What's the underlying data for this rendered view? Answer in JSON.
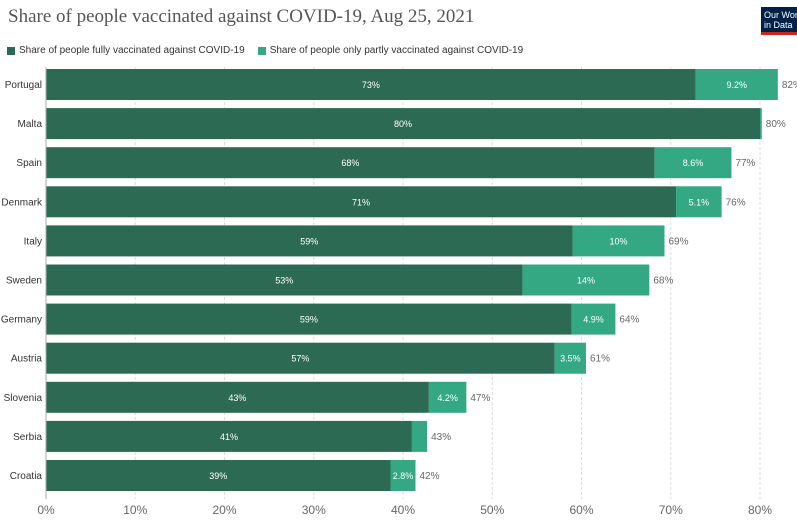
{
  "title": "Share of people vaccinated against COVID-19, Aug 25, 2021",
  "logo": {
    "line1": "Our World",
    "line2": "in Data"
  },
  "colors": {
    "fully": "#2c6a54",
    "partly": "#34a883",
    "grid": "#dddddd",
    "text": "#555555",
    "logo_bg": "#002147",
    "logo_accent": "#ce261e"
  },
  "chart_data": {
    "type": "bar",
    "orientation": "horizontal",
    "stacked": true,
    "title": "Share of people vaccinated against COVID-19, Aug 25, 2021",
    "categories": [
      "Portugal",
      "Malta",
      "Spain",
      "Denmark",
      "Italy",
      "Sweden",
      "Germany",
      "Austria",
      "Slovenia",
      "Serbia",
      "Croatia"
    ],
    "series": [
      {
        "name": "Share of people fully vaccinated against COVID-19",
        "values": [
          72.8,
          80.0,
          68.2,
          70.6,
          59.0,
          53.4,
          58.9,
          57.0,
          42.9,
          41.0,
          38.6
        ],
        "labels": [
          "73%",
          "80%",
          "68%",
          "71%",
          "59%",
          "53%",
          "59%",
          "57%",
          "43%",
          "41%",
          "39%"
        ]
      },
      {
        "name": "Share of people only partly vaccinated against COVID-19",
        "values": [
          9.2,
          0.2,
          8.6,
          5.1,
          10.3,
          14.2,
          4.9,
          3.5,
          4.2,
          1.7,
          2.8
        ],
        "labels": [
          "9.2%",
          "",
          "8.6%",
          "5.1%",
          "10%",
          "14%",
          "4.9%",
          "3.5%",
          "4.2%",
          "",
          "2.8%"
        ]
      }
    ],
    "totals": [
      "82%",
      "80%",
      "77%",
      "76%",
      "69%",
      "68%",
      "64%",
      "61%",
      "47%",
      "43%",
      "42%"
    ],
    "xlim": [
      0,
      80
    ],
    "xticks": [
      0,
      10,
      20,
      30,
      40,
      50,
      60,
      70,
      80
    ],
    "xtick_labels": [
      "0%",
      "10%",
      "20%",
      "30%",
      "40%",
      "50%",
      "60%",
      "70%",
      "80%"
    ],
    "grid": true,
    "legend_position": "top-left"
  }
}
